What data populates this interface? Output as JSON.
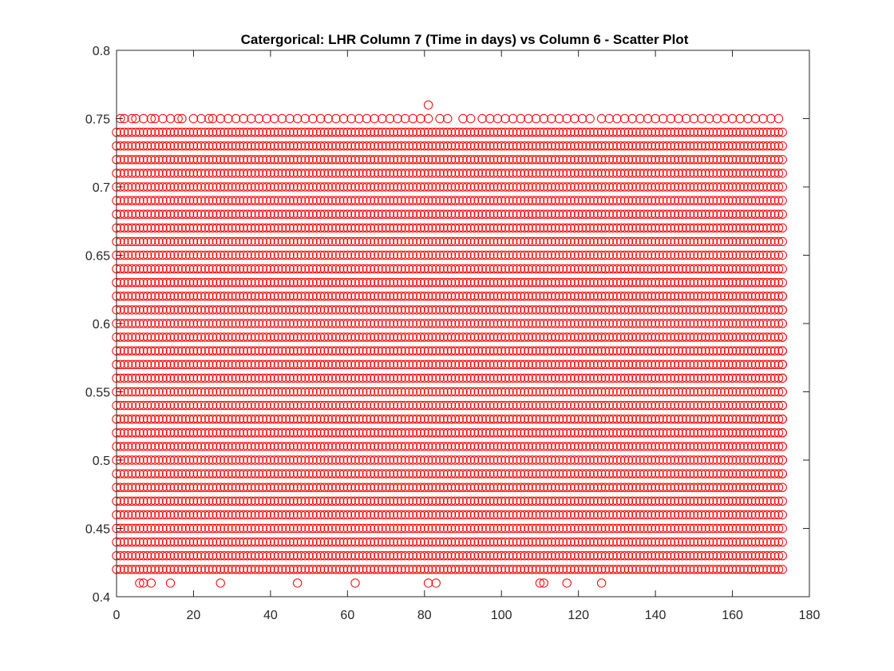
{
  "chart_data": {
    "type": "scatter",
    "title": "Catergorical: LHR Column 7 (Time in days) vs Column 6 - Scatter Plot",
    "xlabel": "",
    "ylabel": "",
    "xlim": [
      0,
      180
    ],
    "ylim": [
      0.4,
      0.8
    ],
    "xticks": [
      0,
      20,
      40,
      60,
      80,
      100,
      120,
      140,
      160,
      180
    ],
    "yticks": [
      0.4,
      0.45,
      0.5,
      0.55,
      0.6,
      0.65,
      0.7,
      0.75,
      0.8
    ],
    "xtick_labels": [
      "0",
      "20",
      "40",
      "60",
      "80",
      "100",
      "120",
      "140",
      "160",
      "180"
    ],
    "ytick_labels": [
      "0.4",
      "0.45",
      "0.5",
      "0.55",
      "0.6",
      "0.65",
      "0.7",
      "0.75",
      "0.8"
    ],
    "grid": false,
    "marker": "open-circle",
    "marker_color": "#ff0000",
    "series": [
      {
        "values_description_omitted": true,
        "dense_rows": {
          "x_min": 0,
          "x_max": 173,
          "y_values": [
            0.42,
            0.43,
            0.44,
            0.45,
            0.46,
            0.47,
            0.48,
            0.49,
            0.5,
            0.51,
            0.52,
            0.53,
            0.54,
            0.55,
            0.56,
            0.57,
            0.58,
            0.59,
            0.6,
            0.61,
            0.62,
            0.63,
            0.64,
            0.65,
            0.66,
            0.67,
            0.68,
            0.69,
            0.7,
            0.71,
            0.72,
            0.73,
            0.74
          ]
        },
        "sparse_row_075_x": [
          1,
          2,
          4,
          5,
          7,
          9,
          10,
          12,
          14,
          16,
          17,
          20,
          22,
          24,
          25,
          27,
          29,
          31,
          33,
          35,
          37,
          39,
          41,
          43,
          45,
          47,
          49,
          51,
          53,
          55,
          57,
          59,
          61,
          63,
          65,
          67,
          69,
          71,
          73,
          75,
          77,
          79,
          81,
          84,
          86,
          90,
          92,
          95,
          97,
          99,
          101,
          103,
          105,
          107,
          109,
          111,
          113,
          115,
          117,
          119,
          121,
          123,
          126,
          128,
          130,
          132,
          134,
          136,
          138,
          140,
          142,
          144,
          146,
          148,
          150,
          152,
          154,
          156,
          158,
          160,
          162,
          164,
          166,
          168,
          170,
          172
        ],
        "extra_points": [
          [
            81,
            0.76
          ],
          [
            6,
            0.41
          ],
          [
            7,
            0.41
          ],
          [
            9,
            0.41
          ],
          [
            14,
            0.41
          ],
          [
            27,
            0.41
          ],
          [
            47,
            0.41
          ],
          [
            62,
            0.41
          ],
          [
            81,
            0.41
          ],
          [
            83,
            0.41
          ],
          [
            110,
            0.41
          ],
          [
            111,
            0.41
          ],
          [
            117,
            0.41
          ],
          [
            126,
            0.41
          ],
          [
            173,
            0.62
          ],
          [
            173,
            0.61
          ],
          [
            173,
            0.6
          ],
          [
            173,
            0.59
          ],
          [
            173,
            0.58
          ],
          [
            173,
            0.57
          ],
          [
            173,
            0.56
          ],
          [
            173,
            0.55
          ],
          [
            173,
            0.54
          ],
          [
            173,
            0.53
          ],
          [
            173,
            0.52
          ],
          [
            173,
            0.51
          ],
          [
            173,
            0.5
          ],
          [
            173,
            0.49
          ]
        ]
      }
    ]
  }
}
